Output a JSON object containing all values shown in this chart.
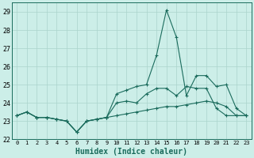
{
  "xlabel": "Humidex (Indice chaleur)",
  "x": [
    0,
    1,
    2,
    3,
    4,
    5,
    6,
    7,
    8,
    9,
    10,
    11,
    12,
    13,
    14,
    15,
    16,
    17,
    18,
    19,
    20,
    21,
    22,
    23
  ],
  "line1": [
    23.3,
    23.5,
    23.2,
    23.2,
    23.1,
    23.0,
    22.4,
    23.0,
    23.1,
    23.2,
    23.3,
    23.4,
    23.5,
    23.6,
    23.7,
    23.8,
    23.8,
    23.9,
    24.0,
    24.1,
    24.0,
    23.8,
    23.3,
    23.3
  ],
  "line2": [
    23.3,
    23.5,
    23.2,
    23.2,
    23.1,
    23.0,
    22.4,
    23.0,
    23.1,
    23.2,
    24.0,
    24.1,
    24.0,
    24.5,
    24.8,
    24.8,
    24.4,
    24.9,
    24.8,
    24.8,
    23.7,
    23.3,
    23.3,
    23.3
  ],
  "line3": [
    23.3,
    23.5,
    23.2,
    23.2,
    23.1,
    23.0,
    22.4,
    23.0,
    23.1,
    23.2,
    24.5,
    24.7,
    24.9,
    25.0,
    26.6,
    29.1,
    27.6,
    24.4,
    25.5,
    25.5,
    24.9,
    25.0,
    23.7,
    23.3
  ],
  "ylim": [
    22,
    29.5
  ],
  "yticks": [
    22,
    23,
    24,
    25,
    26,
    27,
    28,
    29
  ],
  "xticks": [
    0,
    1,
    2,
    3,
    4,
    5,
    6,
    7,
    8,
    9,
    10,
    11,
    12,
    13,
    14,
    15,
    16,
    17,
    18,
    19,
    20,
    21,
    22,
    23
  ],
  "line_color": "#1a6b5c",
  "bg_color": "#cceee8",
  "grid_color": "#aad4cc",
  "marker": "+"
}
